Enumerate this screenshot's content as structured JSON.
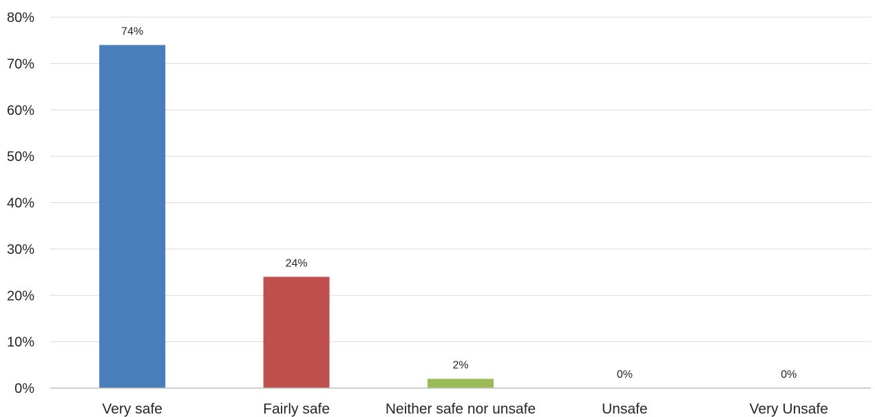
{
  "chart_data": {
    "type": "bar",
    "categories": [
      "Very safe",
      "Fairly safe",
      "Neither safe nor unsafe",
      "Unsafe",
      "Very Unsafe"
    ],
    "values": [
      74,
      24,
      2,
      0,
      0
    ],
    "data_labels": [
      "74%",
      "24%",
      "2%",
      "0%",
      "0%"
    ],
    "bar_colors": [
      "#4a7ebb",
      "#c0504d",
      "#9bbb59",
      "#8064a2",
      "#4bacc6"
    ],
    "title": "",
    "xlabel": "",
    "ylabel": "",
    "ylim": [
      0,
      80
    ],
    "y_ticks": [
      0,
      10,
      20,
      30,
      40,
      50,
      60,
      70,
      80
    ],
    "y_tick_labels": [
      "0%",
      "10%",
      "20%",
      "30%",
      "40%",
      "50%",
      "60%",
      "70%",
      "80%"
    ],
    "grid": true,
    "legend": "none"
  }
}
